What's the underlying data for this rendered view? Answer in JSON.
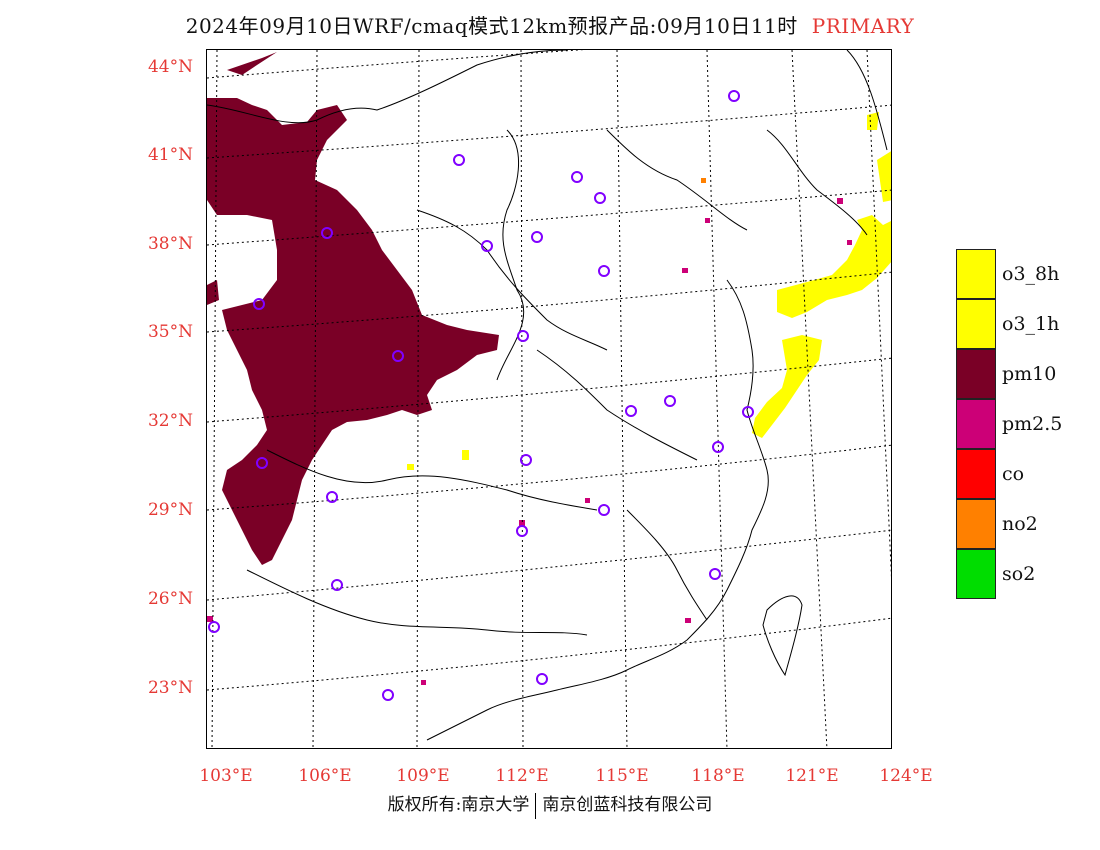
{
  "title": {
    "main": "2024年09月10日WRF/cmaq模式12km预报产品:09月10日11时",
    "tag": "PRIMARY"
  },
  "axes": {
    "lat_labels": [
      "44°N",
      "41°N",
      "38°N",
      "35°N",
      "32°N",
      "29°N",
      "26°N",
      "23°N"
    ],
    "lon_labels": [
      "103°E",
      "106°E",
      "109°E",
      "112°E",
      "115°E",
      "118°E",
      "121°E",
      "124°E"
    ],
    "label_color": "#e53935"
  },
  "legend": {
    "items": [
      {
        "label": "o3_8h",
        "color": "#ffff00"
      },
      {
        "label": "o3_1h",
        "color": "#ffff00"
      },
      {
        "label": "pm10",
        "color": "#7a0026"
      },
      {
        "label": "pm2.5",
        "color": "#cc0077"
      },
      {
        "label": "co",
        "color": "#ff0000"
      },
      {
        "label": "no2",
        "color": "#ff8000"
      },
      {
        "label": "so2",
        "color": "#00dd00"
      }
    ]
  },
  "map": {
    "station_marker_color": "#8000ff",
    "station_marker": "circle-icon"
  },
  "footer": {
    "left": "版权所有:南京大学",
    "right": "南京创蓝科技有限公司"
  }
}
